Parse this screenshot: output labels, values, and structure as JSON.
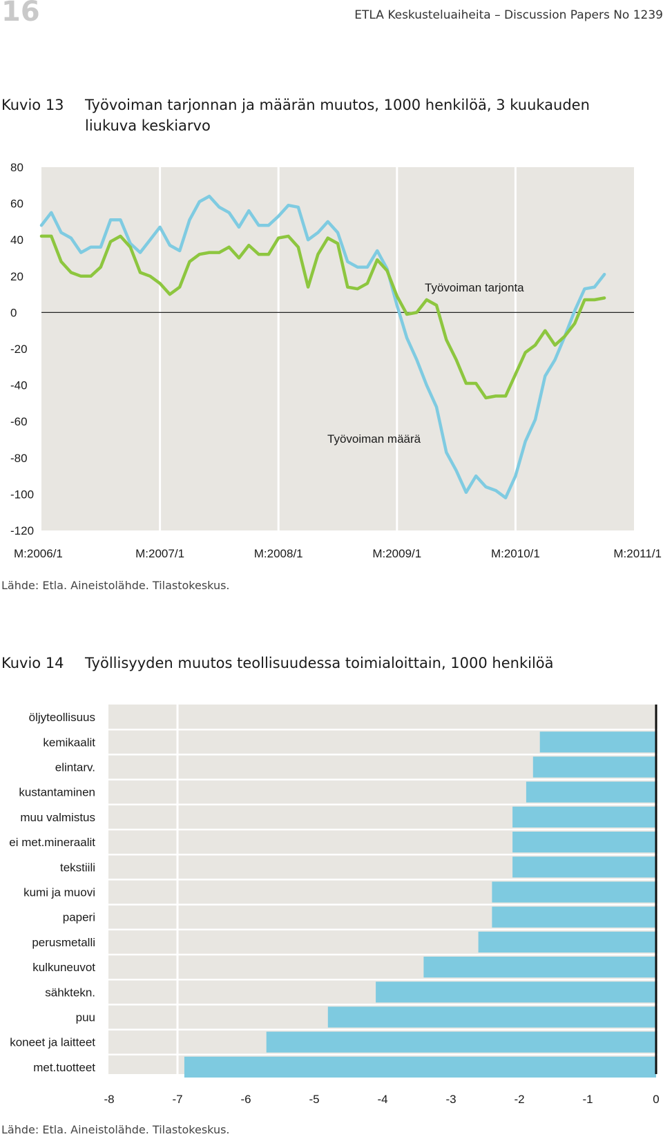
{
  "header": {
    "page_number": "16",
    "publication": "ETLA Keskusteluaiheita – Discussion Papers No 1239"
  },
  "figure13": {
    "label": "Kuvio 13",
    "title": "Työvoiman tarjonnan ja määrän muutos, 1000 henkilöä, 3 kuukauden liukuva keskiarvo",
    "source": "Lähde: Etla. Aineistolähde. Tilastokeskus."
  },
  "figure14": {
    "label": "Kuvio 14",
    "title": "Työllisyyden muutos teollisuudessa toimialoittain, 1000 henkilöä",
    "source": "Lähde: Etla. Aineistolähde. Tilastokeskus."
  },
  "colors": {
    "supply": "#7fcbe1",
    "employment": "#8dc63f",
    "plot_bg": "#e8e6e1",
    "bar": "#7ecae0"
  },
  "chart_data": [
    {
      "type": "line",
      "ylim": [
        -120,
        80
      ],
      "yticks": [
        80,
        60,
        40,
        20,
        0,
        -20,
        -40,
        -60,
        -80,
        -100,
        -120
      ],
      "xlabels": [
        "M:2006/1",
        "M:2007/1",
        "M:2008/1",
        "M:2009/1",
        "M:2010/1",
        "M:2011/1"
      ],
      "grid": "vertical",
      "series": [
        {
          "name": "Työvoiman tarjonta",
          "color": "#7fcbe1",
          "values": [
            48,
            55,
            44,
            41,
            33,
            36,
            36,
            51,
            51,
            38,
            33,
            40,
            47,
            37,
            34,
            51,
            61,
            64,
            58,
            55,
            47,
            56,
            48,
            48,
            53,
            59,
            58,
            40,
            44,
            50,
            44,
            28,
            25,
            25,
            34,
            24,
            4,
            -14,
            -26,
            -40,
            -52,
            -77,
            -87,
            -99,
            -90,
            -96,
            -98,
            -102,
            -90,
            -71,
            -59,
            -35,
            -26,
            -13,
            1,
            13,
            14,
            21
          ]
        },
        {
          "name": "Työvoiman määrä",
          "color": "#8dc63f",
          "values": [
            42,
            42,
            28,
            22,
            20,
            20,
            25,
            39,
            42,
            36,
            22,
            20,
            16,
            10,
            14,
            28,
            32,
            33,
            33,
            36,
            30,
            37,
            32,
            32,
            41,
            42,
            36,
            14,
            32,
            41,
            38,
            14,
            13,
            16,
            29,
            23,
            9,
            -1,
            0,
            7,
            4,
            -15,
            -26,
            -39,
            -39,
            -47,
            -46,
            -46,
            -34,
            -22,
            -18,
            -10,
            -18,
            -13,
            -6,
            7,
            7,
            8
          ]
        }
      ]
    },
    {
      "type": "bar",
      "orientation": "horizontal",
      "xlim": [
        -8,
        0
      ],
      "xticks": [
        -8,
        -7,
        -6,
        -5,
        -4,
        -3,
        -2,
        -1,
        0
      ],
      "categories": [
        "öljyteollisuus",
        "kemikaalit",
        "elintarv.",
        "kustantaminen",
        "muu valmistus",
        "ei met.mineraalit",
        "tekstiili",
        "kumi ja muovi",
        "paperi",
        "perusmetalli",
        "kulkuneuvot",
        "sähktekn.",
        "puu",
        "koneet ja laitteet",
        "met.tuotteet"
      ],
      "values": [
        0,
        -1.7,
        -1.8,
        -1.9,
        -2.1,
        -2.1,
        -2.1,
        -2.4,
        -2.4,
        -2.6,
        -3.4,
        -4.1,
        -4.8,
        -5.7,
        -6.9
      ]
    }
  ]
}
